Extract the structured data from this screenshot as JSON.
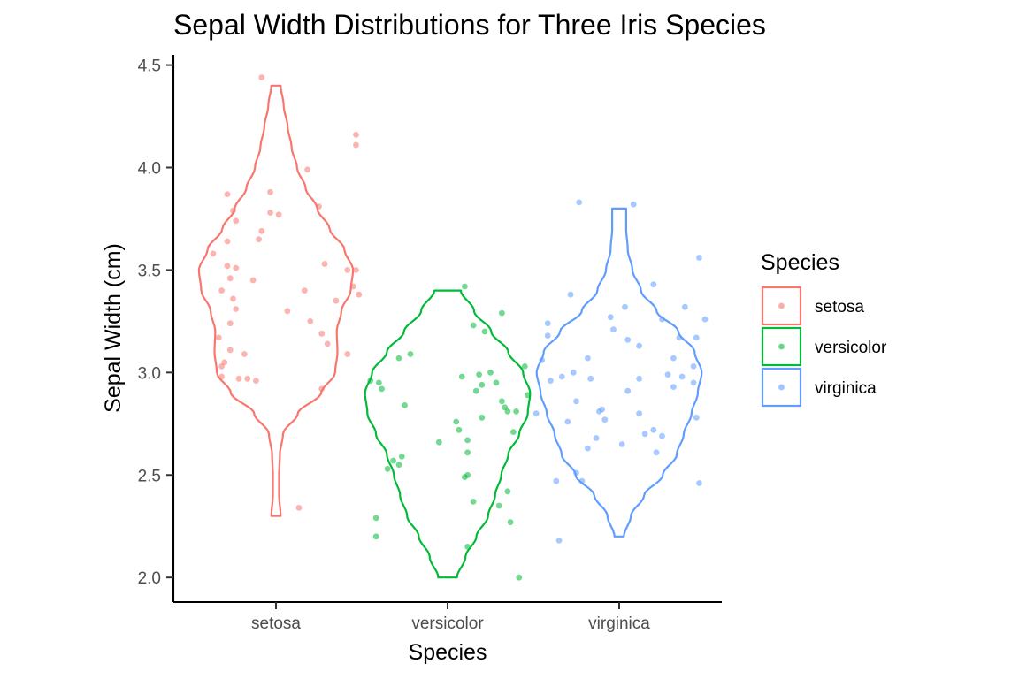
{
  "chart_data": {
    "type": "violin",
    "title": "Sepal Width Distributions for Three Iris Species",
    "xlabel": "Species",
    "ylabel": "Sepal Width (cm)",
    "categories": [
      "setosa",
      "versicolor",
      "virginica"
    ],
    "ylim": [
      1.88,
      4.55
    ],
    "yticks": [
      "2.0",
      "2.5",
      "3.0",
      "3.5",
      "4.0",
      "4.5"
    ],
    "ytick_values": [
      2.0,
      2.5,
      3.0,
      3.5,
      4.0,
      4.5
    ],
    "grid": false,
    "legend": {
      "title": "Species",
      "position": "right",
      "items": [
        "setosa",
        "versicolor",
        "virginica"
      ]
    },
    "colors": {
      "setosa": "#F8766D",
      "versicolor": "#00BA38",
      "virginica": "#619CFF"
    },
    "series": [
      {
        "name": "setosa",
        "range": [
          2.3,
          4.4
        ],
        "violin_profile": [
          [
            2.3,
            0.06
          ],
          [
            2.4,
            0.04
          ],
          [
            2.5,
            0.04
          ],
          [
            2.6,
            0.05
          ],
          [
            2.7,
            0.09
          ],
          [
            2.8,
            0.28
          ],
          [
            2.9,
            0.58
          ],
          [
            3.0,
            0.76
          ],
          [
            3.1,
            0.79
          ],
          [
            3.2,
            0.78
          ],
          [
            3.3,
            0.84
          ],
          [
            3.4,
            0.96
          ],
          [
            3.5,
            0.99
          ],
          [
            3.6,
            0.88
          ],
          [
            3.7,
            0.69
          ],
          [
            3.8,
            0.53
          ],
          [
            3.9,
            0.38
          ],
          [
            4.0,
            0.27
          ],
          [
            4.1,
            0.2
          ],
          [
            4.2,
            0.15
          ],
          [
            4.3,
            0.1
          ],
          [
            4.4,
            0.06
          ]
        ],
        "points": [
          [
            -0.05,
            4.44
          ],
          [
            0.28,
            4.16
          ],
          [
            0.28,
            4.11
          ],
          [
            0.11,
            3.99
          ],
          [
            -0.17,
            3.87
          ],
          [
            -0.02,
            3.88
          ],
          [
            0.15,
            3.81
          ],
          [
            -0.15,
            3.79
          ],
          [
            -0.02,
            3.78
          ],
          [
            0.01,
            3.77
          ],
          [
            -0.14,
            3.74
          ],
          [
            -0.05,
            3.69
          ],
          [
            -0.06,
            3.65
          ],
          [
            -0.17,
            3.64
          ],
          [
            -0.22,
            3.58
          ],
          [
            -0.17,
            3.52
          ],
          [
            -0.14,
            3.51
          ],
          [
            0.17,
            3.53
          ],
          [
            0.28,
            3.5
          ],
          [
            0.25,
            3.5
          ],
          [
            -0.16,
            3.46
          ],
          [
            -0.08,
            3.45
          ],
          [
            0.27,
            3.42
          ],
          [
            -0.19,
            3.4
          ],
          [
            0.1,
            3.4
          ],
          [
            0.29,
            3.38
          ],
          [
            -0.15,
            3.36
          ],
          [
            0.21,
            3.35
          ],
          [
            -0.14,
            3.31
          ],
          [
            0.04,
            3.3
          ],
          [
            -0.16,
            3.24
          ],
          [
            0.12,
            3.25
          ],
          [
            -0.2,
            3.17
          ],
          [
            0.16,
            3.19
          ],
          [
            0.18,
            3.14
          ],
          [
            -0.16,
            3.11
          ],
          [
            -0.11,
            3.09
          ],
          [
            0.25,
            3.09
          ],
          [
            -0.18,
            3.05
          ],
          [
            -0.19,
            3.03
          ],
          [
            -0.19,
            2.98
          ],
          [
            -0.13,
            2.97
          ],
          [
            -0.1,
            2.97
          ],
          [
            -0.07,
            2.96
          ],
          [
            0.16,
            2.92
          ],
          [
            0.08,
            2.34
          ]
        ]
      },
      {
        "name": "versicolor",
        "range": [
          2.0,
          3.4
        ],
        "violin_profile": [
          [
            2.0,
            0.12
          ],
          [
            2.1,
            0.23
          ],
          [
            2.2,
            0.37
          ],
          [
            2.3,
            0.52
          ],
          [
            2.4,
            0.61
          ],
          [
            2.5,
            0.69
          ],
          [
            2.6,
            0.78
          ],
          [
            2.7,
            0.92
          ],
          [
            2.8,
            1.03
          ],
          [
            2.9,
            1.06
          ],
          [
            3.0,
            0.97
          ],
          [
            3.1,
            0.78
          ],
          [
            3.2,
            0.56
          ],
          [
            3.3,
            0.34
          ],
          [
            3.4,
            0.17
          ]
        ],
        "points": [
          [
            0.06,
            3.42
          ],
          [
            0.19,
            3.29
          ],
          [
            0.09,
            3.23
          ],
          [
            0.13,
            3.2
          ],
          [
            -0.13,
            3.09
          ],
          [
            -0.17,
            3.07
          ],
          [
            0.27,
            3.03
          ],
          [
            0.15,
            3.0
          ],
          [
            0.11,
            2.99
          ],
          [
            0.05,
            2.98
          ],
          [
            -0.27,
            2.96
          ],
          [
            -0.24,
            2.95
          ],
          [
            0.17,
            2.95
          ],
          [
            0.12,
            2.94
          ],
          [
            -0.23,
            2.92
          ],
          [
            0.1,
            2.91
          ],
          [
            0.28,
            2.89
          ],
          [
            0.19,
            2.86
          ],
          [
            -0.15,
            2.84
          ],
          [
            0.2,
            2.83
          ],
          [
            0.21,
            2.81
          ],
          [
            0.24,
            2.81
          ],
          [
            0.12,
            2.78
          ],
          [
            0.03,
            2.76
          ],
          [
            0.04,
            2.72
          ],
          [
            0.23,
            2.71
          ],
          [
            0.07,
            2.67
          ],
          [
            -0.03,
            2.66
          ],
          [
            0.07,
            2.61
          ],
          [
            -0.16,
            2.59
          ],
          [
            -0.19,
            2.57
          ],
          [
            -0.17,
            2.55
          ],
          [
            -0.21,
            2.53
          ],
          [
            0.07,
            2.5
          ],
          [
            0.06,
            2.49
          ],
          [
            0.21,
            2.42
          ],
          [
            0.09,
            2.37
          ],
          [
            0.18,
            2.35
          ],
          [
            -0.25,
            2.29
          ],
          [
            0.22,
            2.27
          ],
          [
            -0.25,
            2.2
          ],
          [
            0.07,
            2.15
          ],
          [
            0.25,
            2.0
          ]
        ]
      },
      {
        "name": "virginica",
        "range": [
          2.2,
          3.8
        ],
        "violin_profile": [
          [
            2.2,
            0.06
          ],
          [
            2.3,
            0.15
          ],
          [
            2.4,
            0.32
          ],
          [
            2.5,
            0.56
          ],
          [
            2.6,
            0.74
          ],
          [
            2.7,
            0.83
          ],
          [
            2.8,
            0.93
          ],
          [
            2.9,
            1.01
          ],
          [
            3.0,
            1.06
          ],
          [
            3.1,
            0.97
          ],
          [
            3.2,
            0.76
          ],
          [
            3.3,
            0.48
          ],
          [
            3.4,
            0.28
          ],
          [
            3.5,
            0.17
          ],
          [
            3.6,
            0.11
          ],
          [
            3.7,
            0.09
          ],
          [
            3.8,
            0.09
          ]
        ],
        "points": [
          [
            -0.14,
            3.83
          ],
          [
            0.05,
            3.82
          ],
          [
            0.28,
            3.56
          ],
          [
            0.12,
            3.43
          ],
          [
            -0.17,
            3.38
          ],
          [
            0.02,
            3.32
          ],
          [
            0.23,
            3.32
          ],
          [
            -0.03,
            3.27
          ],
          [
            0.15,
            3.26
          ],
          [
            0.3,
            3.26
          ],
          [
            -0.25,
            3.24
          ],
          [
            -0.02,
            3.21
          ],
          [
            0.21,
            3.17
          ],
          [
            0.27,
            3.17
          ],
          [
            -0.25,
            3.18
          ],
          [
            0.03,
            3.16
          ],
          [
            0.07,
            3.13
          ],
          [
            0.19,
            3.07
          ],
          [
            -0.11,
            3.07
          ],
          [
            -0.27,
            3.06
          ],
          [
            0.26,
            3.03
          ],
          [
            -0.16,
            3.0
          ],
          [
            -0.2,
            2.98
          ],
          [
            0.17,
            2.99
          ],
          [
            0.22,
            2.98
          ],
          [
            -0.1,
            2.97
          ],
          [
            0.07,
            2.97
          ],
          [
            -0.24,
            2.96
          ],
          [
            0.26,
            2.95
          ],
          [
            0.19,
            2.93
          ],
          [
            0.03,
            2.91
          ],
          [
            -0.15,
            2.86
          ],
          [
            -0.06,
            2.82
          ],
          [
            -0.07,
            2.81
          ],
          [
            0.07,
            2.8
          ],
          [
            -0.29,
            2.8
          ],
          [
            0.27,
            2.78
          ],
          [
            -0.05,
            2.77
          ],
          [
            -0.18,
            2.76
          ],
          [
            0.12,
            2.72
          ],
          [
            0.09,
            2.7
          ],
          [
            0.15,
            2.69
          ],
          [
            -0.08,
            2.68
          ],
          [
            0.01,
            2.65
          ],
          [
            -0.11,
            2.63
          ],
          [
            0.13,
            2.61
          ],
          [
            -0.15,
            2.51
          ],
          [
            -0.22,
            2.47
          ],
          [
            -0.13,
            2.47
          ],
          [
            0.28,
            2.46
          ],
          [
            -0.21,
            2.18
          ]
        ]
      }
    ]
  }
}
